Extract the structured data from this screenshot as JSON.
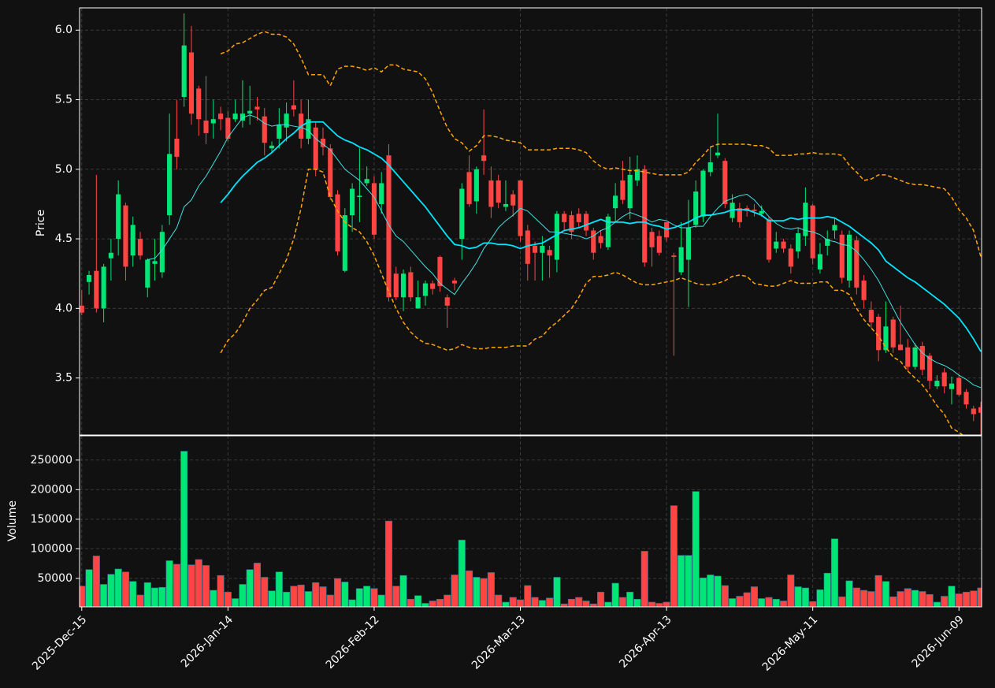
{
  "chart_data": {
    "type": "candlestick",
    "ylabel": "Price",
    "up_color": "#00e676",
    "down_color": "#ff4444",
    "grid": true,
    "xlim": [
      -0.3,
      123.1
    ],
    "xticks": [
      {
        "value": 0,
        "label": "2025-Dec-15"
      },
      {
        "value": 20,
        "label": "2026-Jan-14"
      },
      {
        "value": 40,
        "label": "2026-Feb-12"
      },
      {
        "value": 60,
        "label": "2026-Mar-13"
      },
      {
        "value": 80,
        "label": "2026-Apr-13"
      },
      {
        "value": 100,
        "label": "2026-May-11"
      },
      {
        "value": 120,
        "label": "2026-Jun-09"
      }
    ],
    "ylim": [
      3.09,
      6.16
    ],
    "yticks": [
      3.5,
      {
        "value": 4,
        "label": "4.0"
      },
      4.5,
      {
        "value": 5,
        "label": "5.0"
      },
      5.5,
      {
        "value": 6,
        "label": "6.0"
      }
    ],
    "open": [
      4.02,
      4.19,
      4.27,
      4.0,
      4.36,
      4.5,
      4.74,
      4.38,
      4.5,
      4.15,
      4.32,
      4.26,
      4.67,
      5.22,
      5.52,
      5.84,
      5.58,
      5.35,
      5.33,
      5.4,
      5.37,
      5.36,
      5.35,
      5.4,
      5.45,
      5.38,
      5.15,
      5.22,
      5.3,
      5.46,
      5.4,
      5.22,
      5.3,
      5.22,
      5.15,
      4.82,
      4.27,
      4.67,
      4.8,
      4.9,
      4.9,
      4.75,
      5.1,
      4.25,
      4.08,
      4.26,
      4.0,
      4.09,
      4.18,
      4.37,
      4.08,
      4.2,
      4.5,
      4.98,
      4.77,
      5.1,
      4.92,
      4.92,
      4.73,
      4.82,
      4.92,
      4.56,
      4.45,
      4.4,
      4.42,
      4.35,
      4.68,
      4.67,
      4.68,
      4.68,
      4.56,
      4.52,
      4.44,
      4.72,
      4.92,
      4.72,
      4.92,
      5.0,
      4.55,
      4.52,
      4.62,
      4.38,
      4.26,
      4.35,
      4.6,
      4.66,
      4.98,
      5.1,
      5.06,
      4.65,
      4.72,
      4.72,
      4.71,
      4.68,
      4.64,
      4.43,
      4.48,
      4.43,
      4.41,
      4.52,
      4.74,
      4.28,
      4.45,
      4.56,
      4.53,
      4.2,
      4.49,
      4.2,
      3.99,
      3.94,
      3.7,
      3.92,
      3.74,
      3.72,
      3.58,
      3.73,
      3.66,
      3.44,
      3.54,
      3.42,
      3.5,
      3.4,
      3.28,
      3.29
    ],
    "high": [
      4.13,
      4.27,
      4.96,
      4.32,
      4.5,
      4.92,
      4.76,
      4.66,
      4.55,
      4.36,
      4.5,
      4.6,
      5.4,
      5.5,
      6.12,
      6.03,
      5.6,
      5.67,
      5.5,
      5.45,
      5.42,
      5.5,
      5.64,
      5.6,
      5.52,
      5.44,
      5.2,
      5.44,
      5.48,
      5.64,
      5.5,
      5.5,
      5.34,
      5.3,
      5.18,
      4.85,
      4.72,
      4.9,
      5.15,
      5.02,
      4.95,
      4.98,
      5.18,
      4.3,
      4.28,
      4.3,
      4.2,
      4.2,
      4.2,
      4.38,
      4.1,
      4.22,
      4.9,
      5.1,
      5.02,
      5.43,
      5.02,
      4.96,
      4.92,
      4.85,
      4.92,
      4.6,
      4.48,
      4.52,
      4.45,
      4.7,
      4.7,
      4.7,
      4.72,
      4.7,
      4.58,
      4.56,
      4.68,
      4.9,
      5.06,
      5.09,
      5.1,
      5.03,
      4.58,
      4.56,
      4.62,
      4.4,
      4.62,
      4.78,
      4.92,
      5.0,
      5.16,
      5.4,
      5.08,
      4.82,
      4.76,
      4.74,
      4.75,
      4.74,
      4.66,
      4.55,
      4.5,
      4.46,
      4.58,
      4.87,
      4.75,
      4.47,
      4.56,
      4.65,
      4.56,
      4.56,
      4.52,
      4.24,
      4.05,
      3.96,
      4.05,
      3.94,
      4.02,
      3.78,
      3.75,
      3.76,
      3.68,
      3.52,
      3.57,
      3.51,
      3.52,
      3.42,
      3.3,
      3.33
    ],
    "low": [
      3.95,
      4.1,
      3.97,
      3.9,
      4.2,
      4.38,
      4.2,
      4.3,
      4.35,
      4.08,
      4.2,
      4.22,
      4.6,
      5.0,
      5.45,
      5.32,
      5.24,
      5.18,
      5.22,
      5.28,
      5.2,
      5.34,
      5.3,
      5.32,
      5.35,
      5.1,
      5.12,
      5.15,
      5.2,
      5.38,
      5.15,
      5.18,
      4.95,
      5.1,
      4.78,
      4.38,
      4.26,
      4.55,
      4.62,
      4.88,
      4.5,
      4.68,
      4.05,
      4.06,
      3.98,
      4.05,
      4.0,
      4.02,
      4.1,
      4.12,
      3.86,
      4.13,
      4.35,
      4.73,
      4.68,
      4.96,
      4.65,
      4.72,
      4.7,
      4.66,
      4.48,
      4.2,
      4.2,
      4.2,
      4.22,
      4.26,
      4.56,
      4.5,
      4.58,
      4.52,
      4.35,
      4.43,
      4.42,
      4.62,
      4.75,
      4.64,
      4.88,
      4.3,
      4.3,
      4.38,
      4.48,
      3.66,
      4.24,
      4.01,
      4.58,
      4.62,
      4.95,
      5.08,
      4.72,
      4.62,
      4.58,
      4.66,
      4.66,
      4.66,
      4.33,
      4.4,
      4.4,
      4.25,
      4.36,
      4.45,
      4.32,
      4.25,
      4.38,
      4.5,
      4.18,
      4.15,
      4.1,
      4.0,
      3.86,
      3.62,
      3.68,
      3.68,
      3.7,
      3.55,
      3.56,
      3.52,
      3.42,
      3.42,
      3.39,
      3.31,
      3.37,
      3.28,
      3.19,
      3.09
    ],
    "close": [
      3.97,
      4.24,
      4.0,
      4.3,
      4.4,
      4.82,
      4.3,
      4.6,
      4.38,
      4.35,
      4.34,
      4.55,
      5.11,
      5.09,
      5.89,
      5.4,
      5.36,
      5.26,
      5.36,
      5.36,
      5.22,
      5.4,
      5.4,
      5.42,
      5.43,
      5.19,
      5.17,
      5.32,
      5.4,
      5.43,
      5.22,
      5.36,
      5.0,
      5.16,
      4.8,
      4.41,
      4.67,
      4.86,
      4.81,
      4.93,
      4.53,
      4.9,
      4.08,
      4.08,
      4.25,
      4.08,
      4.08,
      4.18,
      4.14,
      4.16,
      4.02,
      4.18,
      4.86,
      4.75,
      5.0,
      5.06,
      4.73,
      4.76,
      4.75,
      4.74,
      4.52,
      4.32,
      4.4,
      4.45,
      4.38,
      4.68,
      4.62,
      4.55,
      4.62,
      4.56,
      4.4,
      4.47,
      4.66,
      4.81,
      4.78,
      4.96,
      5.0,
      4.33,
      4.44,
      4.4,
      4.51,
      4.37,
      4.44,
      4.58,
      4.84,
      4.99,
      5.05,
      5.12,
      4.75,
      4.76,
      4.62,
      4.7,
      4.7,
      4.7,
      4.35,
      4.48,
      4.43,
      4.3,
      4.54,
      4.76,
      4.36,
      4.39,
      4.5,
      4.6,
      4.22,
      4.53,
      4.15,
      4.06,
      3.9,
      3.7,
      3.87,
      3.72,
      3.7,
      3.58,
      3.72,
      3.56,
      3.48,
      3.48,
      3.44,
      3.46,
      3.38,
      3.31,
      3.24,
      3.25
    ],
    "lines": [
      {
        "color": "#00e5ff",
        "values": [
          null,
          null,
          null,
          null,
          null,
          null,
          null,
          null,
          null,
          null,
          null,
          null,
          null,
          null,
          null,
          null,
          null,
          null,
          null,
          4.76,
          4.82,
          4.89,
          4.95,
          5.0,
          5.05,
          5.08,
          5.12,
          5.17,
          5.22,
          5.26,
          5.31,
          5.34,
          5.34,
          5.34,
          5.29,
          5.24,
          5.21,
          5.19,
          5.16,
          5.14,
          5.11,
          5.08,
          5.03,
          4.97,
          4.91,
          4.85,
          4.79,
          4.73,
          4.66,
          4.59,
          4.52,
          4.46,
          4.45,
          4.43,
          4.44,
          4.47,
          4.47,
          4.46,
          4.46,
          4.45,
          4.43,
          4.45,
          4.46,
          4.47,
          4.5,
          4.53,
          4.56,
          4.57,
          4.58,
          4.6,
          4.62,
          4.64,
          4.62,
          4.62,
          4.62,
          4.61,
          4.62,
          4.62,
          4.6,
          4.59,
          4.57,
          4.58,
          4.6,
          4.62,
          4.65,
          4.67,
          4.67,
          4.68,
          4.69,
          4.71,
          4.71,
          4.71,
          4.69,
          4.67,
          4.63,
          4.63,
          4.63,
          4.65,
          4.64,
          4.65,
          4.65,
          4.65,
          4.66,
          4.65,
          4.62,
          4.59,
          4.55,
          4.51,
          4.47,
          4.42,
          4.34,
          4.3,
          4.26,
          4.22,
          4.19,
          4.15,
          4.11,
          4.07,
          4.03,
          3.98,
          3.93,
          3.86,
          3.78,
          3.69
        ]
      },
      {
        "color": "#40e0e0",
        "values": [
          null,
          null,
          null,
          null,
          null,
          null,
          null,
          null,
          null,
          4.35,
          4.36,
          4.42,
          4.5,
          4.58,
          4.73,
          4.78,
          4.88,
          4.95,
          5.04,
          5.13,
          5.23,
          5.3,
          5.37,
          5.39,
          5.37,
          5.33,
          5.31,
          5.32,
          5.32,
          5.31,
          5.3,
          5.28,
          5.22,
          5.18,
          5.14,
          5.07,
          5.0,
          4.96,
          4.92,
          4.86,
          4.8,
          4.7,
          4.6,
          4.52,
          4.48,
          4.42,
          4.36,
          4.3,
          4.25,
          4.18,
          4.14,
          4.1,
          4.18,
          4.25,
          4.33,
          4.43,
          4.5,
          4.58,
          4.63,
          4.67,
          4.72,
          4.7,
          4.65,
          4.6,
          4.55,
          4.55,
          4.54,
          4.53,
          4.52,
          4.5,
          4.52,
          4.56,
          4.58,
          4.62,
          4.66,
          4.69,
          4.67,
          4.65,
          4.62,
          4.64,
          4.63,
          4.6,
          4.58,
          4.58,
          4.59,
          4.59,
          4.66,
          4.72,
          4.77,
          4.79,
          4.81,
          4.82,
          4.78,
          4.72,
          4.66,
          4.61,
          4.58,
          4.57,
          4.58,
          4.56,
          4.55,
          4.53,
          4.49,
          4.48,
          4.46,
          4.45,
          4.41,
          4.35,
          4.28,
          4.2,
          4.1,
          4.0,
          3.9,
          3.82,
          3.74,
          3.68,
          3.64,
          3.61,
          3.59,
          3.56,
          3.52,
          3.49,
          3.45,
          3.43
        ]
      },
      {
        "color": "#ffa500",
        "dashed": true,
        "values": [
          null,
          null,
          null,
          null,
          null,
          null,
          null,
          null,
          null,
          null,
          null,
          null,
          null,
          null,
          null,
          null,
          null,
          null,
          null,
          5.83,
          5.85,
          5.9,
          5.91,
          5.94,
          5.97,
          5.99,
          5.97,
          5.97,
          5.95,
          5.9,
          5.8,
          5.68,
          5.68,
          5.68,
          5.6,
          5.72,
          5.74,
          5.74,
          5.73,
          5.71,
          5.73,
          5.7,
          5.75,
          5.75,
          5.72,
          5.71,
          5.7,
          5.65,
          5.55,
          5.42,
          5.3,
          5.22,
          5.19,
          5.13,
          5.17,
          5.24,
          5.24,
          5.23,
          5.21,
          5.2,
          5.19,
          5.14,
          5.14,
          5.14,
          5.14,
          5.15,
          5.15,
          5.15,
          5.14,
          5.12,
          5.06,
          5.02,
          5.0,
          5.01,
          5.0,
          4.99,
          4.99,
          4.98,
          4.97,
          4.96,
          4.96,
          4.96,
          4.96,
          4.98,
          5.05,
          5.1,
          5.16,
          5.18,
          5.18,
          5.18,
          5.18,
          5.18,
          5.17,
          5.17,
          5.15,
          5.1,
          5.1,
          5.1,
          5.11,
          5.11,
          5.12,
          5.11,
          5.11,
          5.11,
          5.1,
          5.03,
          4.98,
          4.92,
          4.93,
          4.96,
          4.96,
          4.94,
          4.92,
          4.9,
          4.89,
          4.89,
          4.88,
          4.87,
          4.86,
          4.8,
          4.71,
          4.65,
          4.56,
          4.37
        ]
      },
      {
        "color": "#ffa500",
        "dashed": true,
        "values": [
          null,
          null,
          null,
          null,
          null,
          null,
          null,
          null,
          null,
          null,
          null,
          null,
          null,
          null,
          null,
          null,
          null,
          null,
          null,
          3.68,
          3.77,
          3.82,
          3.9,
          4.0,
          4.06,
          4.13,
          4.15,
          4.25,
          4.35,
          4.5,
          4.72,
          5.0,
          5.0,
          4.98,
          4.8,
          4.7,
          4.62,
          4.58,
          4.55,
          4.48,
          4.38,
          4.25,
          4.12,
          4.0,
          3.9,
          3.83,
          3.78,
          3.75,
          3.74,
          3.72,
          3.7,
          3.71,
          3.74,
          3.72,
          3.71,
          3.71,
          3.72,
          3.72,
          3.72,
          3.73,
          3.73,
          3.73,
          3.78,
          3.8,
          3.86,
          3.9,
          3.95,
          4.0,
          4.08,
          4.18,
          4.23,
          4.23,
          4.24,
          4.26,
          4.24,
          4.21,
          4.18,
          4.17,
          4.17,
          4.18,
          4.19,
          4.2,
          4.22,
          4.2,
          4.18,
          4.17,
          4.17,
          4.18,
          4.2,
          4.23,
          4.24,
          4.23,
          4.18,
          4.17,
          4.16,
          4.16,
          4.18,
          4.2,
          4.18,
          4.18,
          4.18,
          4.19,
          4.19,
          4.13,
          4.13,
          4.1,
          4.0,
          3.92,
          3.86,
          3.8,
          3.72,
          3.65,
          3.62,
          3.55,
          3.5,
          3.45,
          3.38,
          3.3,
          3.24,
          3.14,
          3.11,
          3.07,
          3.03,
          2.98
        ]
      }
    ],
    "volume": {
      "ylabel": "Volume",
      "ylim": [
        2000,
        291000
      ],
      "yticks": [
        50000,
        100000,
        150000,
        200000,
        250000
      ],
      "values": [
        37000,
        65000,
        88000,
        40000,
        57000,
        66000,
        61000,
        45000,
        22000,
        43000,
        34000,
        35000,
        80000,
        74000,
        265000,
        73000,
        82000,
        72000,
        30000,
        55000,
        27000,
        16000,
        40000,
        65000,
        76000,
        52000,
        29000,
        61000,
        27000,
        37000,
        39000,
        28000,
        43000,
        36000,
        22000,
        50000,
        44000,
        14000,
        33000,
        37000,
        33000,
        22000,
        147000,
        37000,
        55000,
        15000,
        21000,
        8000,
        12000,
        15000,
        22000,
        56000,
        115000,
        63000,
        52000,
        50000,
        60000,
        22000,
        10000,
        18000,
        14000,
        38000,
        18000,
        13000,
        17000,
        52000,
        7000,
        15000,
        18000,
        12000,
        7000,
        27000,
        10000,
        42000,
        18000,
        27000,
        15000,
        96000,
        10000,
        8000,
        10000,
        173000,
        89000,
        89000,
        197000,
        51000,
        56000,
        54000,
        38000,
        16000,
        20000,
        26000,
        36000,
        16000,
        18000,
        15000,
        12000,
        56000,
        36000,
        34000,
        11000,
        31000,
        59000,
        117000,
        19000,
        46000,
        34000,
        30000,
        28000,
        55000,
        45000,
        19000,
        28000,
        33000,
        30000,
        28000,
        23000,
        10000,
        20000,
        37000,
        24000,
        27000,
        29000,
        34000
      ]
    }
  }
}
